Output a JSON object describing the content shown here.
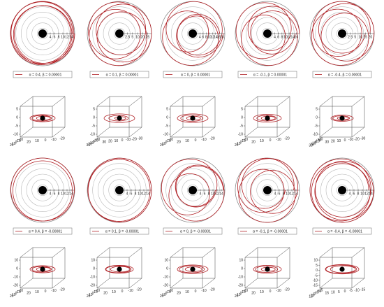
{
  "rows": [
    {
      "kind": "polar",
      "panels": [
        {
          "legend": "α = 0.4, β = 0.00001",
          "ticks": [
            "4",
            "6",
            "8",
            "10",
            "12",
            "14"
          ]
        },
        {
          "legend": "α = 0.1, β = 0.00001",
          "ticks": [
            "2.5",
            "5",
            "10",
            "20",
            "25"
          ]
        },
        {
          "legend": "α = 0, β = 0.00001",
          "ticks": [
            "4",
            "6",
            "8",
            "10",
            "12",
            "14",
            "16",
            "18"
          ]
        },
        {
          "legend": "α = -0.1, β = 0.00001",
          "ticks": [
            "4",
            "6",
            "8",
            "10",
            "12",
            "14",
            "16"
          ]
        },
        {
          "legend": "α = -0.4, β = 0.00001",
          "ticks": [
            "2.5",
            "5",
            "10",
            "15",
            "20"
          ]
        }
      ]
    },
    {
      "kind": "box3d",
      "panels": [
        {
          "z": [
            "5",
            "0",
            "-5",
            "-10"
          ],
          "a": [
            "20",
            "10",
            "0",
            "-10",
            "-20"
          ],
          "b": [
            "20",
            "10",
            "0",
            "-10",
            "-20"
          ]
        },
        {
          "z": [
            "5",
            "0",
            "-5",
            "-10"
          ],
          "a": [
            "30",
            "20",
            "10",
            "0",
            "-10",
            "-20"
          ],
          "b": [
            "30",
            "20",
            "10",
            "0",
            "-10",
            "-20",
            "-30"
          ]
        },
        {
          "z": [
            "5",
            "0",
            "-5",
            "-10"
          ],
          "a": [
            "20",
            "10",
            "0",
            "-10",
            "-20"
          ],
          "b": [
            "20",
            "10",
            "0",
            "-10",
            "-20"
          ]
        },
        {
          "z": [
            "5",
            "0",
            "-5",
            "-10"
          ],
          "a": [
            "20",
            "10",
            "0",
            "-10",
            "-20"
          ],
          "b": [
            "20",
            "10",
            "0",
            "-10",
            "-20"
          ]
        },
        {
          "z": [
            "5",
            "0",
            "-5",
            "-10"
          ],
          "a": [
            "30",
            "20",
            "10",
            "0",
            "-10",
            "-20",
            "-30"
          ],
          "b": [
            "30",
            "20",
            "10",
            "0",
            "-10",
            "-20",
            "-30"
          ]
        }
      ]
    },
    {
      "kind": "polar",
      "panels": [
        {
          "legend": "α = 0.4, β = -0.00001",
          "ticks": [
            "4",
            "6",
            "8",
            "10",
            "12",
            "14"
          ]
        },
        {
          "legend": "α = 0.1, β = -0.00001",
          "ticks": [
            "4",
            "6",
            "8",
            "10",
            "12",
            "14"
          ]
        },
        {
          "legend": "α = 0, β = -0.00001",
          "ticks": [
            "4",
            "6",
            "8",
            "10",
            "12",
            "14"
          ]
        },
        {
          "legend": "α = -0.1, β = -0.00001",
          "ticks": [
            "4",
            "6",
            "8",
            "10",
            "12",
            "14"
          ]
        },
        {
          "legend": "α = -0.4, β = -0.00001",
          "ticks": [
            "4",
            "6",
            "8",
            "10",
            "12",
            "14"
          ]
        }
      ]
    },
    {
      "kind": "box3d",
      "panels": [
        {
          "z": [
            "10",
            "0",
            "-10",
            "-20"
          ],
          "a": [
            "20",
            "10",
            "0",
            "-10",
            "-20"
          ],
          "b": [
            "20",
            "10",
            "0",
            "-10",
            "-20"
          ]
        },
        {
          "z": [
            "10",
            "0",
            "-10",
            "-20"
          ],
          "a": [
            "20",
            "10",
            "0",
            "-10",
            "-20"
          ],
          "b": [
            "20",
            "10",
            "0",
            "-10",
            "-20"
          ]
        },
        {
          "z": [
            "10",
            "0",
            "-10",
            "-20"
          ],
          "a": [
            "20",
            "10",
            "0",
            "-10",
            "-20"
          ],
          "b": [
            "20",
            "10",
            "0",
            "-10",
            "-20"
          ]
        },
        {
          "z": [
            "10",
            "0",
            "-10",
            "-20"
          ],
          "a": [
            "20",
            "10",
            "0",
            "-10",
            "-20"
          ],
          "b": [
            "20",
            "10",
            "0",
            "-10",
            "-20"
          ]
        },
        {
          "z": [
            "10",
            "5",
            "0",
            "-5",
            "-10",
            "-15"
          ],
          "a": [
            "15",
            "10",
            "5",
            "0",
            "-5",
            "-10",
            "-15"
          ],
          "b": [
            "15",
            "10",
            "5",
            "0",
            "-5",
            "-10",
            "-15"
          ]
        }
      ]
    }
  ],
  "colors": {
    "orbit": "#b01e23",
    "grid": "#b8b8b8",
    "frame": "#444444",
    "mass": "#000000"
  }
}
